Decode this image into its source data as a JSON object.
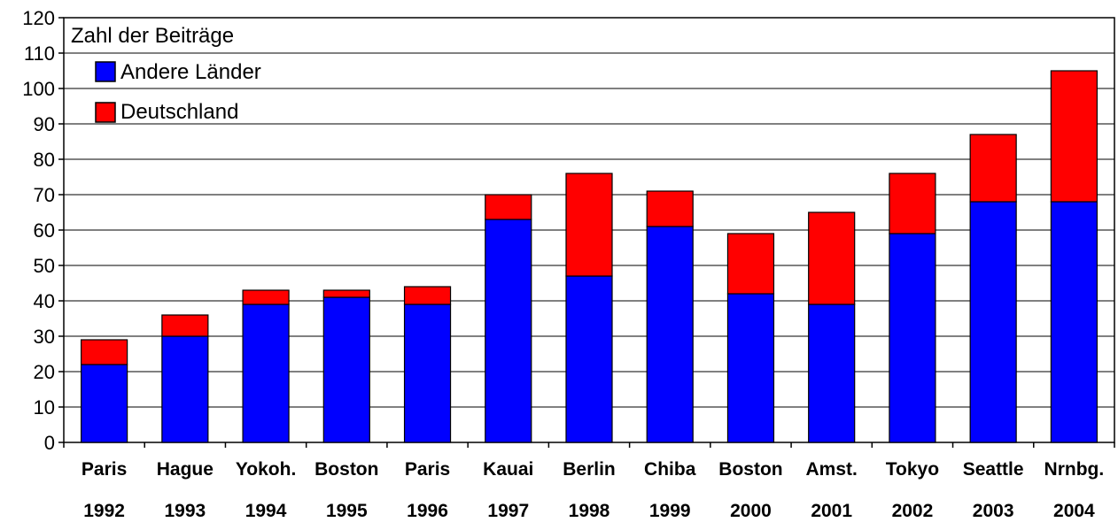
{
  "chart_data": {
    "type": "bar",
    "stacked": true,
    "title": "",
    "xlabel": "",
    "ylabel": "",
    "legend_title": "Zahl der Beiträge",
    "legend_placement": "top-left",
    "grid": true,
    "ylim": [
      0,
      120
    ],
    "yticks": [
      "0",
      "10",
      "20",
      "30",
      "40",
      "50",
      "60",
      "70",
      "80",
      "90",
      "100",
      "110",
      "120"
    ],
    "categories": [
      {
        "city": "Paris",
        "year": "1992"
      },
      {
        "city": "Hague",
        "year": "1993"
      },
      {
        "city": "Yokoh.",
        "year": "1994"
      },
      {
        "city": "Boston",
        "year": "1995"
      },
      {
        "city": "Paris",
        "year": "1996"
      },
      {
        "city": "Kauai",
        "year": "1997"
      },
      {
        "city": "Berlin",
        "year": "1998"
      },
      {
        "city": "Chiba",
        "year": "1999"
      },
      {
        "city": "Boston",
        "year": "2000"
      },
      {
        "city": "Amst.",
        "year": "2001"
      },
      {
        "city": "Tokyo",
        "year": "2002"
      },
      {
        "city": "Seattle",
        "year": "2003"
      },
      {
        "city": "Nrnbg.",
        "year": "2004"
      }
    ],
    "series": [
      {
        "name": "Andere Länder",
        "color": "#0000ff",
        "values": [
          22,
          30,
          39,
          41,
          39,
          63,
          47,
          61,
          42,
          39,
          59,
          68,
          68
        ]
      },
      {
        "name": "Deutschland",
        "color": "#ff0000",
        "values": [
          7,
          6,
          4,
          2,
          5,
          7,
          29,
          10,
          17,
          26,
          17,
          19,
          37
        ]
      }
    ]
  }
}
